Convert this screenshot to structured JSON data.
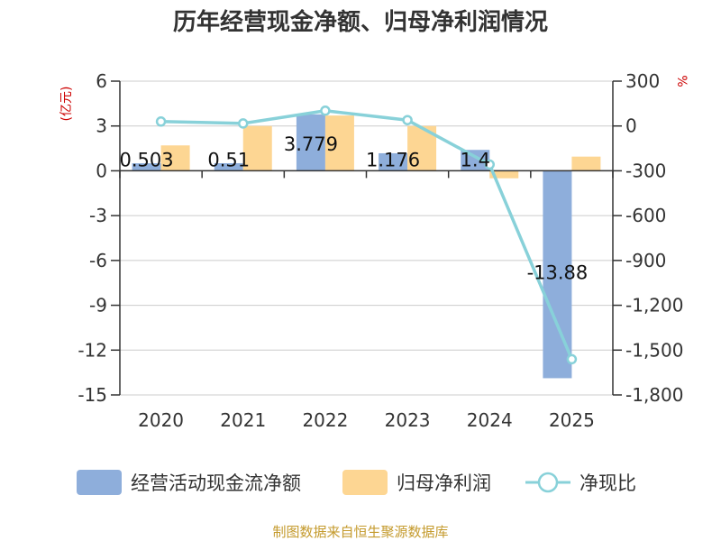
{
  "chart_data": {
    "type": "bar+line",
    "title": "历年经营现金净额、归母净利润情况",
    "categories": [
      "2020",
      "2021",
      "2022",
      "2023",
      "2024",
      "2025"
    ],
    "series": [
      {
        "name": "经营活动现金流净额",
        "kind": "bar",
        "axis": "left",
        "color": "#8eaedb",
        "values": [
          0.503,
          0.51,
          3.779,
          1.176,
          1.4,
          -13.88
        ],
        "labels": [
          "0.503",
          "0.51",
          "3.779",
          "1.176",
          "1.4",
          "-13.88"
        ]
      },
      {
        "name": "归母净利润",
        "kind": "bar",
        "axis": "left",
        "color": "#fdd693",
        "values": [
          1.7,
          3.0,
          3.7,
          3.0,
          -0.5,
          0.95
        ]
      },
      {
        "name": "净现比",
        "kind": "line",
        "axis": "right",
        "color": "#88d1d9",
        "values": [
          29.6,
          17.0,
          102.1,
          39.2,
          -258,
          -1561
        ]
      }
    ],
    "left_axis": {
      "unit": "(亿元)",
      "min": -15,
      "max": 6,
      "step": 3,
      "ticks": [
        "6",
        "3",
        "0",
        "-3",
        "-6",
        "-9",
        "-12",
        "-15"
      ]
    },
    "right_axis": {
      "unit": "%",
      "min": -1800,
      "max": 300,
      "step": 300,
      "ticks": [
        "300",
        "0",
        "-300",
        "-600",
        "-900",
        "-1,200",
        "-1,500",
        "-1,800"
      ]
    },
    "grid": true,
    "legend_position": "bottom"
  },
  "colors": {
    "unit_red": "#cc0000",
    "source_gold": "#c49a2c",
    "grid": "#cccccc",
    "axis": "#333333"
  },
  "footer": {
    "source": "制图数据来自恒生聚源数据库"
  }
}
